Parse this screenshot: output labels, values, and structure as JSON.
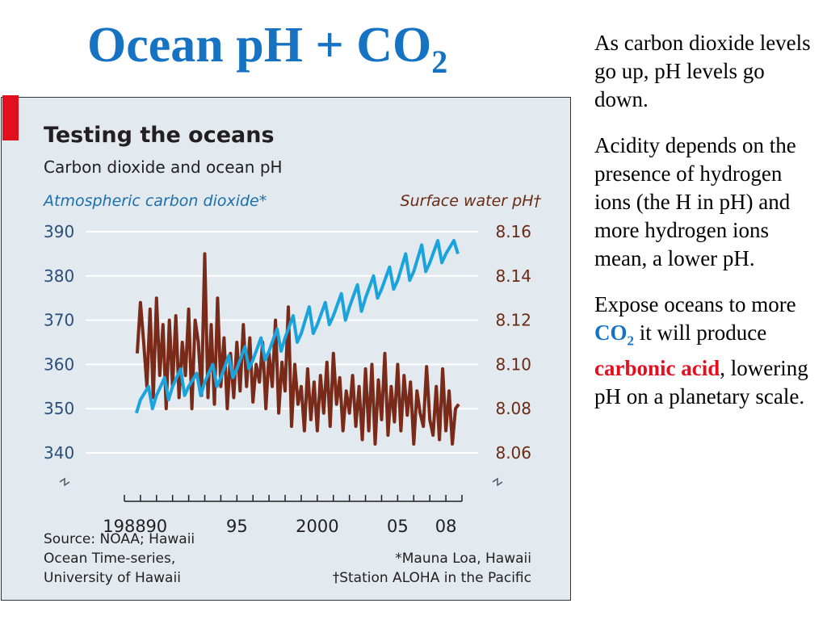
{
  "slide": {
    "title": "Ocean pH + CO",
    "title_subscript": "2"
  },
  "side_text": {
    "p1": "As carbon dioxide levels go up, pH levels go down.",
    "p2": "Acidity depends on the presence of hydrogen ions (the H in pH) and more hydrogen ions mean, a lower pH.",
    "p3_before": "Expose oceans to more ",
    "p3_co2": "CO",
    "p3_co2_sub": "2",
    "p3_mid": " it will produce ",
    "p3_acid": "carbonic acid",
    "p3_after": ", lowering pH on a planetary scale."
  },
  "chart_data": {
    "type": "line",
    "title": "Testing the oceans",
    "subtitle": "Carbon dioxide and ocean pH",
    "left_axis_label": "Atmospheric carbon dioxide*",
    "right_axis_label": "Surface water pH†",
    "left_ylim": [
      340,
      390
    ],
    "right_ylim": [
      8.06,
      8.16
    ],
    "xlim": [
      1988,
      2009
    ],
    "left_ticks": [
      "390",
      "380",
      "370",
      "360",
      "350",
      "340"
    ],
    "right_ticks": [
      "8.16",
      "8.14",
      "8.12",
      "8.10",
      "8.08",
      "8.06"
    ],
    "x_ticks": [
      {
        "value": 1988,
        "label": "1988"
      },
      {
        "value": 1990,
        "label": "90"
      },
      {
        "value": 1995,
        "label": "95"
      },
      {
        "value": 2000,
        "label": "2000"
      },
      {
        "value": 2005,
        "label": "05"
      },
      {
        "value": 2008,
        "label": "08"
      }
    ],
    "grid": true,
    "source": [
      "Source: NOAA; Hawaii",
      "Ocean Time-series,",
      "University of Hawaii"
    ],
    "notes": [
      "*Mauna Loa, Hawaii",
      "†Station ALOHA in the Pacific"
    ],
    "colors": {
      "co2": "#1aa3dc",
      "ph": "#7a2a18"
    },
    "series": [
      {
        "axis": "left",
        "x": [
          1988.75,
          1989.0,
          1989.5,
          1989.75,
          1990.0,
          1990.5,
          1990.75,
          1991.0,
          1991.5,
          1991.75,
          1992.0,
          1992.5,
          1992.75,
          1993.0,
          1993.5,
          1993.75,
          1994.0,
          1994.5,
          1994.75,
          1995.0,
          1995.5,
          1995.75,
          1996.0,
          1996.5,
          1996.75,
          1997.0,
          1997.5,
          1997.75,
          1998.0,
          1998.5,
          1998.75,
          1999.0,
          1999.5,
          1999.75,
          2000.0,
          2000.5,
          2000.75,
          2001.0,
          2001.5,
          2001.75,
          2002.0,
          2002.5,
          2002.75,
          2003.0,
          2003.5,
          2003.75,
          2004.0,
          2004.5,
          2004.75,
          2005.0,
          2005.5,
          2005.75,
          2006.0,
          2006.5,
          2006.75,
          2007.0,
          2007.5,
          2007.75,
          2008.0,
          2008.5,
          2008.75
        ],
        "values": [
          349,
          352,
          355,
          350,
          353,
          357,
          352,
          355,
          359,
          353,
          355,
          358,
          353,
          356,
          360,
          355,
          357,
          362,
          357,
          359,
          364,
          359,
          361,
          366,
          361,
          363,
          368,
          363,
          366,
          371,
          365,
          367,
          373,
          367,
          369,
          374,
          369,
          371,
          376,
          370,
          373,
          378,
          372,
          375,
          380,
          375,
          377,
          382,
          377,
          379,
          385,
          379,
          381,
          387,
          381,
          383,
          388,
          383,
          385,
          388,
          385
        ]
      },
      {
        "axis": "right",
        "x": [
          1988.8,
          1989.0,
          1989.2,
          1989.4,
          1989.6,
          1989.8,
          1990.0,
          1990.2,
          1990.4,
          1990.6,
          1990.8,
          1991.0,
          1991.2,
          1991.4,
          1991.6,
          1991.8,
          1992.0,
          1992.2,
          1992.4,
          1992.6,
          1992.8,
          1993.0,
          1993.2,
          1993.4,
          1993.6,
          1993.8,
          1994.0,
          1994.2,
          1994.4,
          1994.6,
          1994.8,
          1995.0,
          1995.2,
          1995.4,
          1995.6,
          1995.8,
          1996.0,
          1996.2,
          1996.4,
          1996.6,
          1996.8,
          1997.0,
          1997.2,
          1997.4,
          1997.6,
          1997.8,
          1998.0,
          1998.2,
          1998.4,
          1998.6,
          1998.8,
          1999.0,
          1999.2,
          1999.4,
          1999.6,
          1999.8,
          2000.0,
          2000.2,
          2000.4,
          2000.6,
          2000.8,
          2001.0,
          2001.2,
          2001.4,
          2001.6,
          2001.8,
          2002.0,
          2002.2,
          2002.4,
          2002.6,
          2002.8,
          2003.0,
          2003.2,
          2003.4,
          2003.6,
          2003.8,
          2004.0,
          2004.2,
          2004.4,
          2004.6,
          2004.8,
          2005.0,
          2005.2,
          2005.4,
          2005.6,
          2005.8,
          2006.0,
          2006.2,
          2006.4,
          2006.6,
          2006.8,
          2007.0,
          2007.2,
          2007.4,
          2007.6,
          2007.8,
          2008.0,
          2008.2,
          2008.4,
          2008.6,
          2008.8
        ],
        "values": [
          8.105,
          8.128,
          8.11,
          8.09,
          8.125,
          8.085,
          8.13,
          8.095,
          8.118,
          8.08,
          8.12,
          8.09,
          8.122,
          8.085,
          8.11,
          8.095,
          8.125,
          8.08,
          8.12,
          8.11,
          8.086,
          8.15,
          8.085,
          8.118,
          8.082,
          8.13,
          8.09,
          8.112,
          8.08,
          8.105,
          8.085,
          8.11,
          8.088,
          8.118,
          8.09,
          8.112,
          8.083,
          8.1,
          8.092,
          8.11,
          8.08,
          8.105,
          8.09,
          8.12,
          8.078,
          8.101,
          8.088,
          8.126,
          8.072,
          8.1,
          8.082,
          8.09,
          8.07,
          8.098,
          8.075,
          8.092,
          8.07,
          8.095,
          8.078,
          8.101,
          8.072,
          8.105,
          8.082,
          8.094,
          8.07,
          8.088,
          8.078,
          8.095,
          8.072,
          8.09,
          8.066,
          8.098,
          8.07,
          8.1,
          8.064,
          8.093,
          8.075,
          8.105,
          8.068,
          8.09,
          8.074,
          8.1,
          8.07,
          8.095,
          8.077,
          8.092,
          8.064,
          8.088,
          8.078,
          8.072,
          8.099,
          8.075,
          8.068,
          8.09,
          8.066,
          8.098,
          8.07,
          8.088,
          8.064,
          8.08,
          8.082
        ]
      }
    ]
  }
}
